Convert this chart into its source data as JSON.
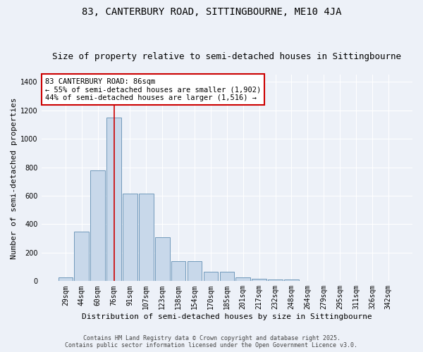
{
  "title1": "83, CANTERBURY ROAD, SITTINGBOURNE, ME10 4JA",
  "title2": "Size of property relative to semi-detached houses in Sittingbourne",
  "xlabel": "Distribution of semi-detached houses by size in Sittingbourne",
  "ylabel": "Number of semi-detached properties",
  "categories": [
    "29sqm",
    "44sqm",
    "60sqm",
    "76sqm",
    "91sqm",
    "107sqm",
    "123sqm",
    "138sqm",
    "154sqm",
    "170sqm",
    "185sqm",
    "201sqm",
    "217sqm",
    "232sqm",
    "248sqm",
    "264sqm",
    "279sqm",
    "295sqm",
    "311sqm",
    "326sqm",
    "342sqm"
  ],
  "values": [
    25,
    350,
    780,
    1150,
    615,
    615,
    310,
    140,
    140,
    65,
    65,
    25,
    15,
    10,
    10,
    0,
    0,
    0,
    0,
    0,
    0
  ],
  "bar_color": "#c8d8ea",
  "bar_edge_color": "#7099bb",
  "background_color": "#edf1f8",
  "grid_color": "#ffffff",
  "red_line_index": 3,
  "annotation_text": "83 CANTERBURY ROAD: 86sqm\n← 55% of semi-detached houses are smaller (1,902)\n44% of semi-detached houses are larger (1,516) →",
  "annotation_box_color": "#ffffff",
  "annotation_box_edge": "#cc0000",
  "ylim": [
    0,
    1450
  ],
  "yticks": [
    0,
    200,
    400,
    600,
    800,
    1000,
    1200,
    1400
  ],
  "footer1": "Contains HM Land Registry data © Crown copyright and database right 2025.",
  "footer2": "Contains public sector information licensed under the Open Government Licence v3.0.",
  "title_fontsize": 10,
  "subtitle_fontsize": 9,
  "axis_label_fontsize": 8,
  "tick_fontsize": 7,
  "annotation_fontsize": 7.5,
  "footer_fontsize": 6
}
